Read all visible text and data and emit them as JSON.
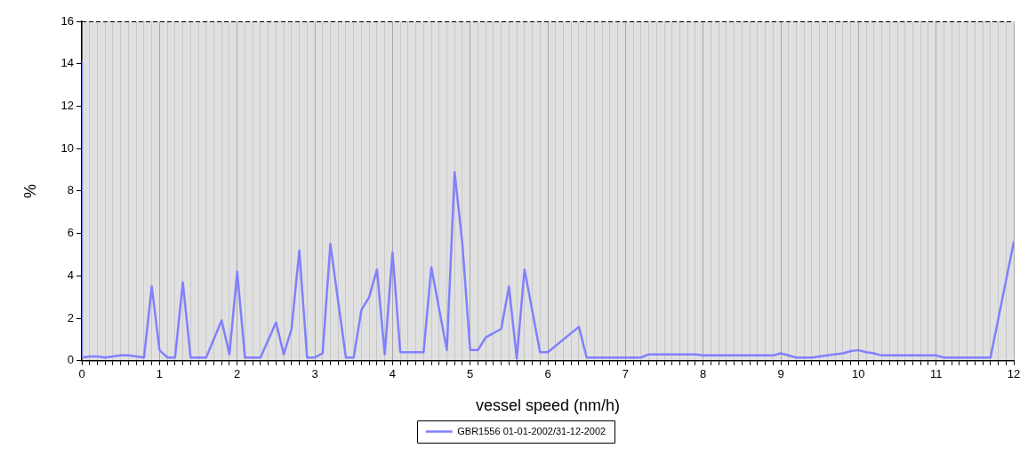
{
  "chart_data": {
    "type": "line",
    "xlabel": "vessel speed (nm/h)",
    "ylabel": "%",
    "legend": "bottom",
    "grid": "x",
    "marker": "none",
    "line_style": "solid",
    "xlim": [
      0,
      12
    ],
    "ylim": [
      0,
      16
    ],
    "yticks": [
      0,
      2,
      4,
      6,
      8,
      10,
      12,
      14,
      16
    ],
    "xticks": [
      0,
      {
        "value": 0.1,
        "label": null
      },
      {
        "value": 0.2,
        "label": null
      },
      {
        "value": 0.3,
        "label": null
      },
      {
        "value": 0.4,
        "label": null
      },
      {
        "value": 0.5,
        "label": null
      },
      {
        "value": 0.6,
        "label": null
      },
      {
        "value": 0.7,
        "label": null
      },
      {
        "value": 0.8,
        "label": null
      },
      {
        "value": 0.9,
        "label": null
      },
      1,
      {
        "value": 1.1,
        "label": null
      },
      {
        "value": 1.2,
        "label": null
      },
      {
        "value": 1.3,
        "label": null
      },
      {
        "value": 1.4,
        "label": null
      },
      {
        "value": 1.5,
        "label": null
      },
      {
        "value": 1.6,
        "label": null
      },
      {
        "value": 1.7,
        "label": null
      },
      {
        "value": 1.8,
        "label": null
      },
      {
        "value": 1.9,
        "label": null
      },
      2,
      {
        "value": 2.1,
        "label": null
      },
      {
        "value": 2.2,
        "label": null
      },
      {
        "value": 2.3,
        "label": null
      },
      {
        "value": 2.4,
        "label": null
      },
      {
        "value": 2.5,
        "label": null
      },
      {
        "value": 2.6,
        "label": null
      },
      {
        "value": 2.7,
        "label": null
      },
      {
        "value": 2.8,
        "label": null
      },
      {
        "value": 2.9,
        "label": null
      },
      3,
      {
        "value": 3.1,
        "label": null
      },
      {
        "value": 3.2,
        "label": null
      },
      {
        "value": 3.3,
        "label": null
      },
      {
        "value": 3.4,
        "label": null
      },
      {
        "value": 3.5,
        "label": null
      },
      {
        "value": 3.6,
        "label": null
      },
      {
        "value": 3.7,
        "label": null
      },
      {
        "value": 3.8,
        "label": null
      },
      {
        "value": 3.9,
        "label": null
      },
      4,
      {
        "value": 4.1,
        "label": null
      },
      {
        "value": 4.2,
        "label": null
      },
      {
        "value": 4.3,
        "label": null
      },
      {
        "value": 4.4,
        "label": null
      },
      {
        "value": 4.5,
        "label": null
      },
      {
        "value": 4.6,
        "label": null
      },
      {
        "value": 4.7,
        "label": null
      },
      {
        "value": 4.8,
        "label": null
      },
      {
        "value": 4.9,
        "label": null
      },
      5,
      {
        "value": 5.1,
        "label": null
      },
      {
        "value": 5.2,
        "label": null
      },
      {
        "value": 5.3,
        "label": null
      },
      {
        "value": 5.4,
        "label": null
      },
      {
        "value": 5.5,
        "label": null
      },
      {
        "value": 5.6,
        "label": null
      },
      {
        "value": 5.7,
        "label": null
      },
      {
        "value": 5.8,
        "label": null
      },
      {
        "value": 5.9,
        "label": null
      },
      6,
      {
        "value": 6.1,
        "label": null
      },
      {
        "value": 6.2,
        "label": null
      },
      {
        "value": 6.3,
        "label": null
      },
      {
        "value": 6.4,
        "label": null
      },
      {
        "value": 6.5,
        "label": null
      },
      {
        "value": 6.6,
        "label": null
      },
      {
        "value": 6.7,
        "label": null
      },
      {
        "value": 6.8,
        "label": null
      },
      {
        "value": 6.9,
        "label": null
      },
      7,
      {
        "value": 7.1,
        "label": null
      },
      {
        "value": 7.2,
        "label": null
      },
      {
        "value": 7.3,
        "label": null
      },
      {
        "value": 7.4,
        "label": null
      },
      {
        "value": 7.5,
        "label": null
      },
      {
        "value": 7.6,
        "label": null
      },
      {
        "value": 7.7,
        "label": null
      },
      {
        "value": 7.8,
        "label": null
      },
      {
        "value": 7.9,
        "label": null
      },
      8,
      {
        "value": 8.1,
        "label": null
      },
      {
        "value": 8.2,
        "label": null
      },
      {
        "value": 8.3,
        "label": null
      },
      {
        "value": 8.4,
        "label": null
      },
      {
        "value": 8.5,
        "label": null
      },
      {
        "value": 8.6,
        "label": null
      },
      {
        "value": 8.7,
        "label": null
      },
      {
        "value": 8.8,
        "label": null
      },
      {
        "value": 8.9,
        "label": null
      },
      9,
      {
        "value": 9.1,
        "label": null
      },
      {
        "value": 9.2,
        "label": null
      },
      {
        "value": 9.3,
        "label": null
      },
      {
        "value": 9.4,
        "label": null
      },
      {
        "value": 9.5,
        "label": null
      },
      {
        "value": 9.6,
        "label": null
      },
      {
        "value": 9.7,
        "label": null
      },
      {
        "value": 9.8,
        "label": null
      },
      {
        "value": 9.9,
        "label": null
      },
      10,
      {
        "value": 10.1,
        "label": null
      },
      {
        "value": 10.2,
        "label": null
      },
      {
        "value": 10.3,
        "label": null
      },
      {
        "value": 10.4,
        "label": null
      },
      {
        "value": 10.5,
        "label": null
      },
      {
        "value": 10.6,
        "label": null
      },
      {
        "value": 10.7,
        "label": null
      },
      {
        "value": 10.8,
        "label": null
      },
      {
        "value": 10.9,
        "label": null
      },
      11,
      {
        "value": 11.1,
        "label": null
      },
      {
        "value": 11.2,
        "label": null
      },
      {
        "value": 11.3,
        "label": null
      },
      {
        "value": 11.4,
        "label": null
      },
      {
        "value": 11.5,
        "label": null
      },
      {
        "value": 11.6,
        "label": null
      },
      {
        "value": 11.7,
        "label": null
      },
      {
        "value": 11.8,
        "label": null
      },
      {
        "value": 11.9,
        "label": null
      },
      12
    ],
    "series": [
      {
        "name": "GBR1556 01-01-2002/31-12-2002",
        "color": "#8080ff",
        "x": [
          0,
          0,
          0.1,
          0.2,
          0.3,
          0.4,
          0.5,
          0.6,
          0.7,
          0.8,
          0.9,
          1.0,
          1.1,
          1.2,
          1.3,
          1.4,
          1.5,
          1.6,
          1.8,
          1.9,
          2.0,
          2.1,
          2.2,
          2.3,
          2.5,
          2.6,
          2.7,
          2.8,
          2.9,
          3.0,
          3.1,
          3.2,
          3.3,
          3.4,
          3.5,
          3.6,
          3.7,
          3.8,
          3.9,
          4.0,
          4.1,
          4.4,
          4.5,
          4.7,
          4.8,
          4.9,
          5.0,
          5.1,
          5.2,
          5.4,
          5.5,
          5.6,
          5.7,
          5.9,
          6.0,
          6.4,
          6.5,
          7.2,
          7.3,
          7.9,
          8.0,
          8.9,
          9.0,
          9.2,
          9.4,
          9.6,
          9.8,
          9.9,
          10.0,
          10.1,
          10.2,
          10.3,
          11.0,
          11.1,
          11.7,
          12
        ],
        "values": [
          14.1,
          0.15,
          0.2,
          0.2,
          0.15,
          0.2,
          0.25,
          0.25,
          0.2,
          0.15,
          3.5,
          0.5,
          0.15,
          0.15,
          3.7,
          0.15,
          0.15,
          0.15,
          1.9,
          0.3,
          4.2,
          0.15,
          0.15,
          0.15,
          1.8,
          0.3,
          1.5,
          5.2,
          0.15,
          0.15,
          0.35,
          5.5,
          2.8,
          0.15,
          0.15,
          2.4,
          3.0,
          4.3,
          0.3,
          5.1,
          0.4,
          0.4,
          4.4,
          0.5,
          8.9,
          5.5,
          0.5,
          0.5,
          1.1,
          1.5,
          3.5,
          0.1,
          4.3,
          0.4,
          0.4,
          1.6,
          0.15,
          0.15,
          0.3,
          0.3,
          0.25,
          0.25,
          0.35,
          0.15,
          0.15,
          0.25,
          0.35,
          0.45,
          0.5,
          0.4,
          0.35,
          0.25,
          0.25,
          0.15,
          0.15,
          5.6
        ]
      }
    ]
  }
}
